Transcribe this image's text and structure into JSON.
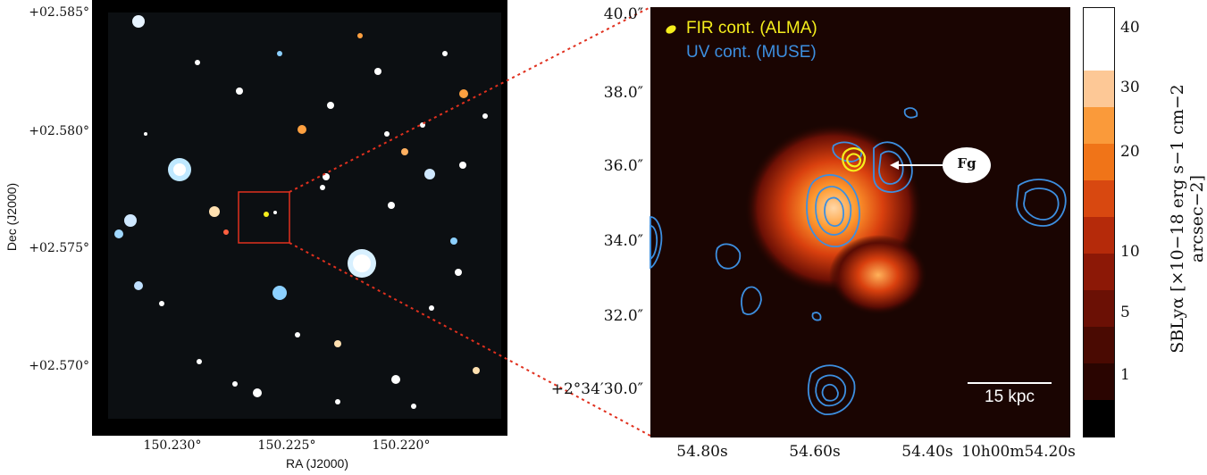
{
  "left_panel": {
    "ylabel": "Dec (J2000)",
    "xlabel": "RA (J2000)",
    "y_ticks": [
      "+02.585°",
      "+02.580°",
      "+02.575°",
      "+02.570°"
    ],
    "x_ticks": [
      "150.230°",
      "150.225°",
      "150.220°"
    ],
    "colors": {
      "box": "#e0301e",
      "connector": "#e0301e"
    }
  },
  "right_panel": {
    "y_ticks": [
      "40.0″",
      "38.0″",
      "36.0″",
      "34.0″",
      "32.0″",
      "+2°34′30.0″"
    ],
    "x_ticks": [
      "54.80s",
      "54.60s",
      "54.40s",
      "10h00m54.20s"
    ],
    "legend": [
      {
        "label": "FIR cont. (ALMA)",
        "color": "#f5ee1c"
      },
      {
        "label": "UV cont. (MUSE)",
        "color": "#3d8fe0"
      }
    ],
    "annotation": "Fg",
    "scale_bar": "15 kpc",
    "colors": {
      "background": "#1a0502",
      "emission": "#ff8a1f"
    }
  },
  "colorbar": {
    "label": "SBLyα [×10−18 erg s−1 cm−2 arcsec−2]",
    "ticks": [
      "40",
      "30",
      "20",
      "10",
      "5",
      "1"
    ],
    "colors": [
      "#000000",
      "#2a0501",
      "#4a0a02",
      "#6b1005",
      "#8c1806",
      "#b52a0a",
      "#d84810",
      "#f07418",
      "#fa9a3a",
      "#fdc896",
      "#ffffff"
    ]
  }
}
